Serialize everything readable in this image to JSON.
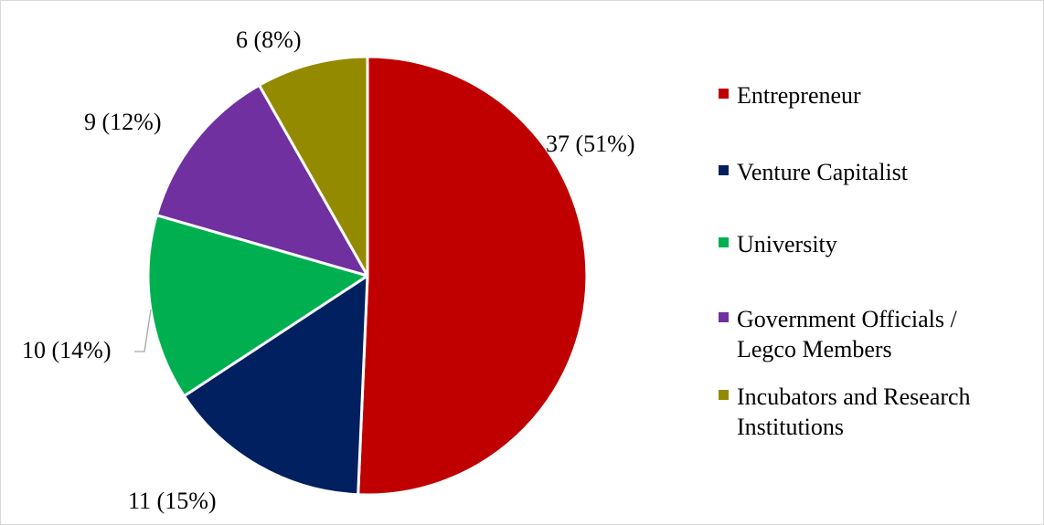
{
  "chart_data": {
    "type": "pie",
    "title": "",
    "legend_position": "right",
    "slices": [
      {
        "name": "Entrepreneur",
        "value": 37,
        "percent": 51,
        "label": "37 (51%)",
        "color": "#C00000"
      },
      {
        "name": "Venture Capitalist",
        "value": 11,
        "percent": 15,
        "label": "11 (15%)",
        "color": "#002060"
      },
      {
        "name": "University",
        "value": 10,
        "percent": 14,
        "label": "10 (14%)",
        "color": "#00B050"
      },
      {
        "name": "Government Officials / Legco Members",
        "value": 9,
        "percent": 12,
        "label": "9 (12%)",
        "color": "#7030A0"
      },
      {
        "name": "Incubators and Research Institutions",
        "value": 6,
        "percent": 8,
        "label": "6 (8%)",
        "color": "#948A00"
      }
    ]
  },
  "legend": {
    "items": [
      {
        "lines": [
          "Entrepreneur"
        ],
        "color": "#C00000",
        "icon": "square-marker"
      },
      {
        "lines": [
          "Venture Capitalist"
        ],
        "color": "#002060",
        "icon": "square-marker"
      },
      {
        "lines": [
          "University"
        ],
        "color": "#00B050",
        "icon": "square-marker"
      },
      {
        "lines": [
          "Government Officials /",
          "Legco Members"
        ],
        "color": "#7030A0",
        "icon": "square-marker"
      },
      {
        "lines": [
          "Incubators and Research",
          "Institutions"
        ],
        "color": "#948A00",
        "icon": "square-marker"
      }
    ]
  }
}
